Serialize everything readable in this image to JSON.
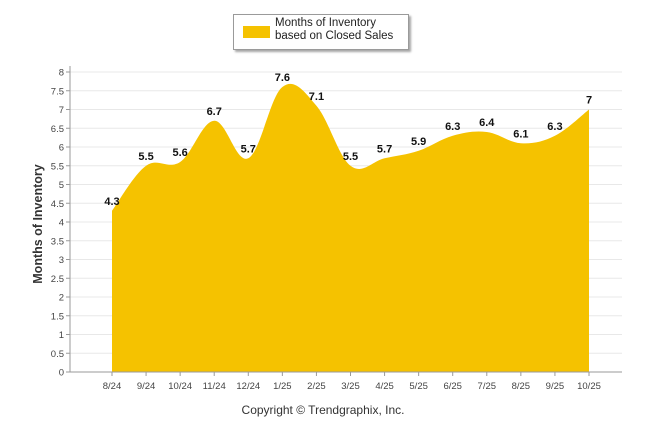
{
  "chart_data": {
    "type": "area",
    "title": "",
    "categories": [
      "8/24",
      "9/24",
      "10/24",
      "11/24",
      "12/24",
      "1/25",
      "2/25",
      "3/25",
      "4/25",
      "5/25",
      "6/25",
      "7/25",
      "8/25",
      "9/25",
      "10/25"
    ],
    "series": [
      {
        "name": "Months of Inventory based on Closed Sales",
        "values": [
          4.3,
          5.5,
          5.6,
          6.7,
          5.7,
          7.6,
          7.1,
          5.5,
          5.7,
          5.9,
          6.3,
          6.4,
          6.1,
          6.3,
          7
        ]
      }
    ],
    "data_labels": [
      "4.3",
      "5.5",
      "5.6",
      "6.7",
      "5.7",
      "7.6",
      "7.1",
      "5.5",
      "5.7",
      "5.9",
      "6.3",
      "6.4",
      "6.1",
      "6.3",
      "7"
    ],
    "xlabel": "",
    "ylabel": "Months of Inventory",
    "ylim": [
      0,
      8
    ],
    "yticks": [
      "0",
      "0.5",
      "1",
      "1.5",
      "2",
      "2.5",
      "3",
      "3.5",
      "4",
      "4.5",
      "5",
      "5.5",
      "6",
      "6.5",
      "7",
      "7.5",
      "8"
    ],
    "grid": true,
    "legend_position": "top-center"
  },
  "colors": {
    "area": "#F5C200",
    "grid": "#e8e8e8",
    "axis": "#9a9a9a"
  },
  "footer": {
    "copyright": "Copyright © Trendgraphix, Inc."
  }
}
